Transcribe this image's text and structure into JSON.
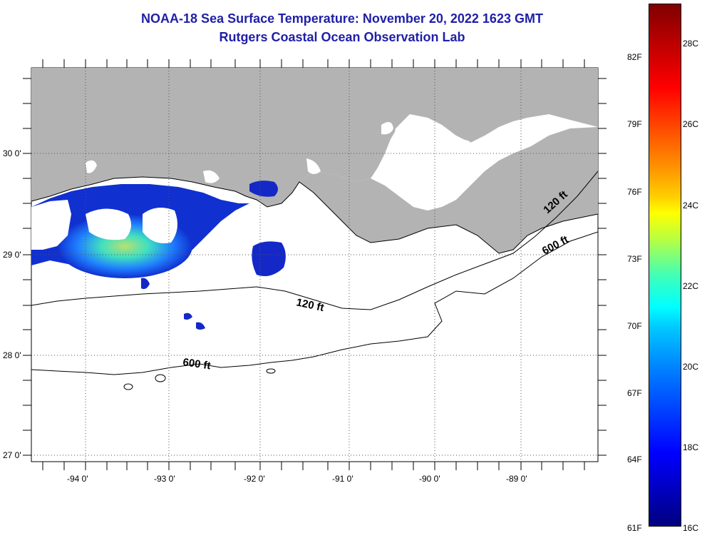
{
  "header": {
    "title": "NOAA-18 Sea Surface Temperature:  November 20, 2022 1623 GMT",
    "subtitle": "Rutgers Coastal Ocean Observation Lab"
  },
  "map": {
    "latitude_labels": [
      "30 0'",
      "29 0'",
      "28 0'",
      "27 0'"
    ],
    "longitude_labels": [
      "-94 0'",
      "-93 0'",
      "-92 0'",
      "-91 0'",
      "-90 0'",
      "-89 0'"
    ],
    "contours": [
      {
        "label": "120 ft"
      },
      {
        "label": "120 ft"
      },
      {
        "label": "600 ft"
      },
      {
        "label": "600 ft"
      }
    ],
    "colors": {
      "land": "#b3b3b3",
      "water_nodata": "#ffffff",
      "gridline": "#555555"
    }
  },
  "colorbar": {
    "fahrenheit_labels": [
      "82F",
      "79F",
      "76F",
      "73F",
      "70F",
      "67F",
      "64F",
      "61F"
    ],
    "celsius_labels": [
      "28C",
      "26C",
      "24C",
      "22C",
      "20C",
      "18C",
      "16C"
    ],
    "range_f": [
      61,
      84
    ],
    "range_c": [
      16,
      29
    ]
  }
}
